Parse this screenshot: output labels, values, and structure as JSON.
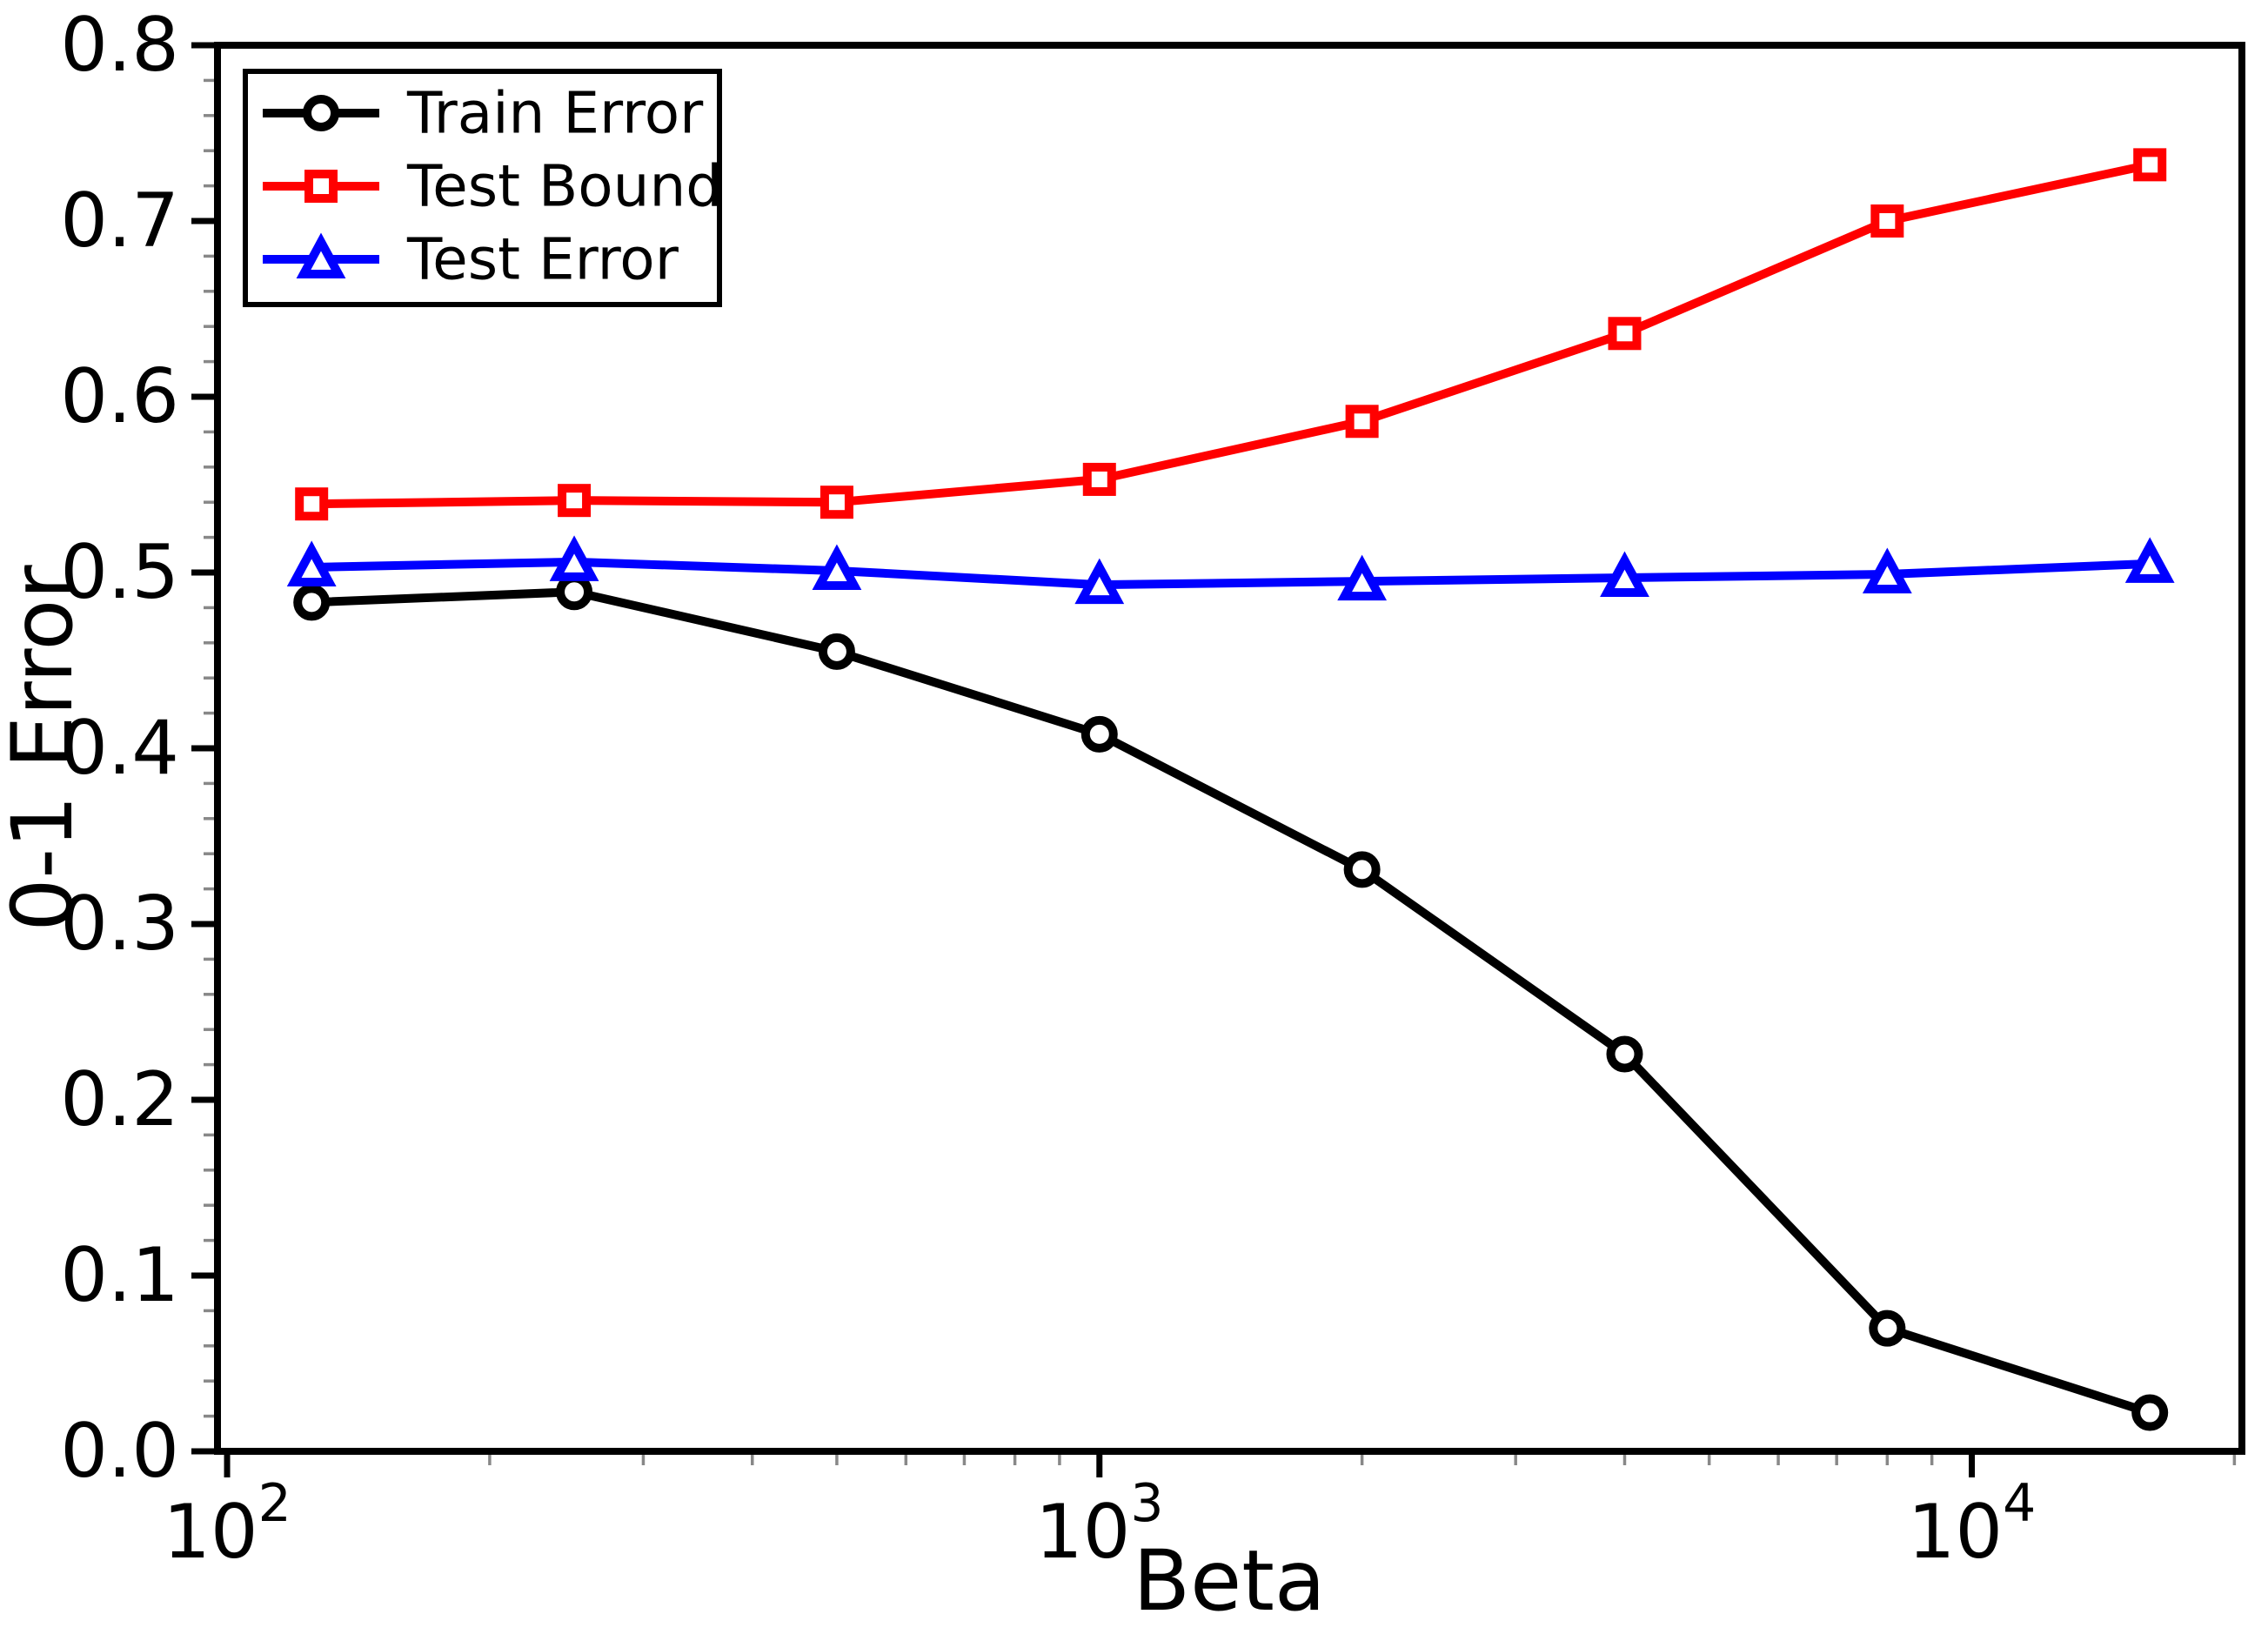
{
  "chart_data": {
    "type": "line",
    "title": "",
    "xlabel": "Beta",
    "ylabel": "0-1 Error",
    "x_scale": "log",
    "xlim": [
      97.5,
      20400
    ],
    "ylim": [
      0,
      0.8
    ],
    "grid": false,
    "colors": {
      "axis": "#000000",
      "minor_tick": "#888888",
      "background": "#ffffff"
    },
    "x": [
      125,
      250,
      500,
      1000,
      2000,
      4000,
      8000,
      16000
    ],
    "series": [
      {
        "name": "Train Error",
        "color": "#000000",
        "marker": "circle",
        "values": [
          0.483,
          0.489,
          0.455,
          0.408,
          0.331,
          0.226,
          0.07,
          0.022
        ]
      },
      {
        "name": "Test Bound",
        "color": "#ff0000",
        "marker": "square",
        "values": [
          0.539,
          0.541,
          0.54,
          0.553,
          0.586,
          0.636,
          0.7,
          0.732
        ]
      },
      {
        "name": "Test Error",
        "color": "#0000ff",
        "marker": "triangle",
        "values": [
          0.503,
          0.506,
          0.501,
          0.493,
          0.495,
          0.497,
          0.499,
          0.505
        ]
      }
    ],
    "y_ticks": {
      "values": [
        0.0,
        0.1,
        0.2,
        0.3,
        0.4,
        0.5,
        0.6,
        0.7,
        0.8
      ],
      "labels": [
        "0.0",
        "0.1",
        "0.2",
        "0.3",
        "0.4",
        "0.5",
        "0.6",
        "0.7",
        "0.8"
      ]
    },
    "y_minor_step": 0.02,
    "x_major_ticks": {
      "values": [
        100,
        1000,
        10000
      ],
      "labels": [
        {
          "base": "10",
          "exp": "2"
        },
        {
          "base": "10",
          "exp": "3"
        },
        {
          "base": "10",
          "exp": "4"
        }
      ]
    },
    "legend": {
      "position": "upper left",
      "entries": [
        "Train Error",
        "Test Bound",
        "Test Error"
      ]
    }
  }
}
